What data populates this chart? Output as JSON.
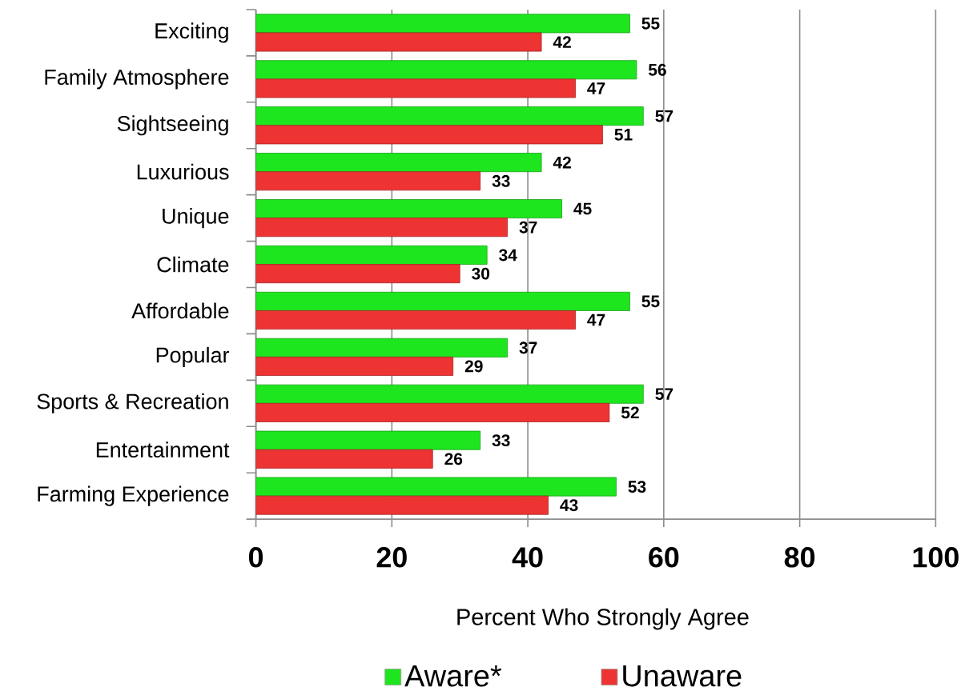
{
  "chart_data": {
    "type": "bar",
    "orientation": "horizontal",
    "categories": [
      "Exciting",
      "Family Atmosphere",
      "Sightseeing",
      "Luxurious",
      "Unique",
      "Climate",
      "Affordable",
      "Popular",
      "Sports & Recreation",
      "Entertainment",
      "Farming Experience"
    ],
    "series": [
      {
        "name": "Aware*",
        "color": "#1ee61e",
        "values": [
          55,
          56,
          57,
          42,
          45,
          34,
          55,
          37,
          57,
          33,
          53
        ]
      },
      {
        "name": "Unaware",
        "color": "#ee3333",
        "values": [
          42,
          47,
          51,
          33,
          37,
          30,
          47,
          29,
          52,
          26,
          43
        ]
      }
    ],
    "xlabel": "Percent Who Strongly Agree",
    "xlim": [
      0,
      100
    ],
    "xticks": [
      0,
      20,
      40,
      60,
      80,
      100
    ],
    "grid": "x",
    "legend": "bottom",
    "data_labels": true
  }
}
